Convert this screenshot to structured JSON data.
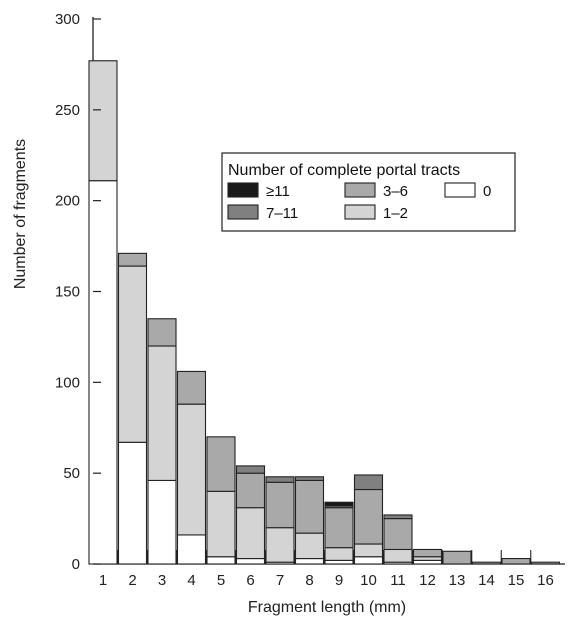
{
  "chart_data": {
    "type": "bar",
    "stacked": true,
    "xlabel": "Fragment length (mm)",
    "ylabel": "Number of fragments",
    "ylim": [
      0,
      300
    ],
    "yticks": [
      0,
      50,
      100,
      150,
      200,
      250,
      300
    ],
    "categories": [
      "1",
      "2",
      "3",
      "4",
      "5",
      "6",
      "7",
      "8",
      "9",
      "10",
      "11",
      "12",
      "13",
      "14",
      "15",
      "16"
    ],
    "legend_title": "Number of complete portal tracts",
    "legend_placement": "top-right",
    "series": [
      {
        "name": "0",
        "color": "#ffffff",
        "values": [
          211,
          67,
          46,
          16,
          4,
          3,
          1,
          3,
          2,
          4,
          1,
          2,
          0,
          0,
          0,
          0
        ]
      },
      {
        "name": "1–2",
        "color": "#d4d4d4",
        "values": [
          66,
          97,
          74,
          72,
          36,
          28,
          19,
          14,
          7,
          7,
          7,
          2,
          0,
          0,
          0,
          0
        ]
      },
      {
        "name": "3–6",
        "color": "#a9a9a9",
        "values": [
          0,
          7,
          15,
          18,
          30,
          19,
          25,
          29,
          22,
          30,
          17,
          4,
          7,
          1,
          3,
          1
        ]
      },
      {
        "name": "7–11",
        "color": "#808080",
        "values": [
          0,
          0,
          0,
          0,
          0,
          4,
          3,
          2,
          1,
          8,
          2,
          0,
          0,
          0,
          0,
          0
        ]
      },
      {
        "name": "≥11",
        "color": "#1a1a1a",
        "values": [
          0,
          0,
          0,
          0,
          0,
          0,
          0,
          0,
          2,
          0,
          0,
          0,
          0,
          0,
          0,
          0
        ]
      }
    ],
    "legend_order": [
      "≥11",
      "3–6",
      "0",
      "7–11",
      "1–2"
    ],
    "grid": false
  }
}
